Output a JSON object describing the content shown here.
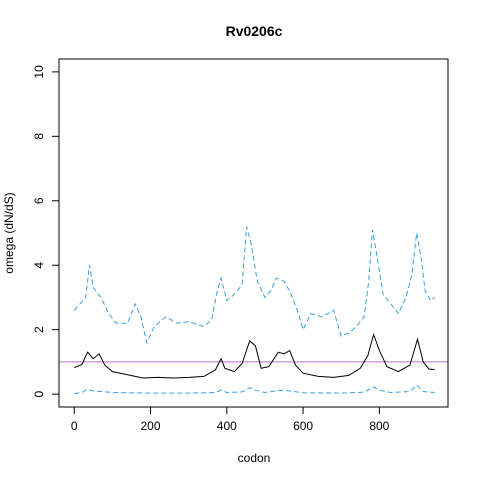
{
  "chart_data": {
    "type": "line",
    "title": "Rv0206c",
    "xlabel": "codon",
    "ylabel": "omega (dN/dS)",
    "xlim": [
      -40,
      980
    ],
    "ylim": [
      -0.4,
      10.4
    ],
    "xticks": [
      0,
      200,
      400,
      600,
      800
    ],
    "yticks": [
      0,
      2,
      4,
      6,
      8,
      10
    ],
    "grid": false,
    "reference_line": {
      "y": 1,
      "color": "#c36ad0"
    },
    "series": [
      {
        "style": "solid",
        "color": "#000000",
        "points": [
          [
            0,
            0.82
          ],
          [
            20,
            0.92
          ],
          [
            35,
            1.3
          ],
          [
            50,
            1.1
          ],
          [
            65,
            1.25
          ],
          [
            80,
            0.9
          ],
          [
            100,
            0.7
          ],
          [
            140,
            0.6
          ],
          [
            180,
            0.5
          ],
          [
            220,
            0.52
          ],
          [
            260,
            0.5
          ],
          [
            300,
            0.52
          ],
          [
            340,
            0.55
          ],
          [
            370,
            0.75
          ],
          [
            385,
            1.1
          ],
          [
            395,
            0.8
          ],
          [
            420,
            0.7
          ],
          [
            440,
            0.95
          ],
          [
            460,
            1.65
          ],
          [
            475,
            1.5
          ],
          [
            490,
            0.8
          ],
          [
            510,
            0.85
          ],
          [
            535,
            1.3
          ],
          [
            550,
            1.25
          ],
          [
            565,
            1.35
          ],
          [
            580,
            0.9
          ],
          [
            600,
            0.65
          ],
          [
            640,
            0.55
          ],
          [
            680,
            0.52
          ],
          [
            720,
            0.58
          ],
          [
            750,
            0.8
          ],
          [
            770,
            1.2
          ],
          [
            785,
            1.85
          ],
          [
            800,
            1.35
          ],
          [
            820,
            0.85
          ],
          [
            850,
            0.7
          ],
          [
            880,
            0.9
          ],
          [
            900,
            1.7
          ],
          [
            915,
            1.0
          ],
          [
            930,
            0.78
          ],
          [
            945,
            0.76
          ]
        ]
      },
      {
        "style": "dashed",
        "color": "#3aa0dc",
        "points": [
          [
            0,
            2.6
          ],
          [
            15,
            2.8
          ],
          [
            30,
            3.0
          ],
          [
            40,
            4.0
          ],
          [
            50,
            3.3
          ],
          [
            70,
            3.0
          ],
          [
            90,
            2.5
          ],
          [
            110,
            2.2
          ],
          [
            140,
            2.2
          ],
          [
            160,
            2.8
          ],
          [
            175,
            2.4
          ],
          [
            190,
            1.6
          ],
          [
            210,
            2.1
          ],
          [
            240,
            2.4
          ],
          [
            270,
            2.2
          ],
          [
            300,
            2.25
          ],
          [
            340,
            2.1
          ],
          [
            360,
            2.3
          ],
          [
            375,
            3.2
          ],
          [
            385,
            3.6
          ],
          [
            400,
            2.9
          ],
          [
            420,
            3.1
          ],
          [
            440,
            3.4
          ],
          [
            452,
            5.2
          ],
          [
            465,
            4.6
          ],
          [
            480,
            3.5
          ],
          [
            500,
            3.0
          ],
          [
            515,
            3.2
          ],
          [
            530,
            3.6
          ],
          [
            550,
            3.5
          ],
          [
            565,
            3.2
          ],
          [
            585,
            2.6
          ],
          [
            600,
            2.0
          ],
          [
            620,
            2.5
          ],
          [
            650,
            2.4
          ],
          [
            680,
            2.6
          ],
          [
            700,
            1.8
          ],
          [
            720,
            1.9
          ],
          [
            740,
            2.1
          ],
          [
            760,
            2.4
          ],
          [
            772,
            3.5
          ],
          [
            782,
            5.1
          ],
          [
            795,
            4.2
          ],
          [
            810,
            3.1
          ],
          [
            830,
            2.8
          ],
          [
            850,
            2.5
          ],
          [
            870,
            3.0
          ],
          [
            885,
            3.7
          ],
          [
            898,
            5.0
          ],
          [
            910,
            4.2
          ],
          [
            920,
            3.2
          ],
          [
            935,
            2.9
          ],
          [
            945,
            3.0
          ]
        ]
      },
      {
        "style": "dashed",
        "color": "#3aa0dc",
        "points": [
          [
            0,
            0.02
          ],
          [
            20,
            0.05
          ],
          [
            35,
            0.15
          ],
          [
            50,
            0.1
          ],
          [
            70,
            0.08
          ],
          [
            100,
            0.05
          ],
          [
            200,
            0.03
          ],
          [
            300,
            0.03
          ],
          [
            370,
            0.05
          ],
          [
            385,
            0.12
          ],
          [
            400,
            0.05
          ],
          [
            440,
            0.07
          ],
          [
            460,
            0.2
          ],
          [
            475,
            0.12
          ],
          [
            500,
            0.05
          ],
          [
            540,
            0.12
          ],
          [
            565,
            0.1
          ],
          [
            600,
            0.04
          ],
          [
            700,
            0.03
          ],
          [
            760,
            0.06
          ],
          [
            785,
            0.22
          ],
          [
            800,
            0.12
          ],
          [
            830,
            0.05
          ],
          [
            880,
            0.08
          ],
          [
            898,
            0.28
          ],
          [
            915,
            0.08
          ],
          [
            945,
            0.05
          ]
        ]
      }
    ]
  }
}
